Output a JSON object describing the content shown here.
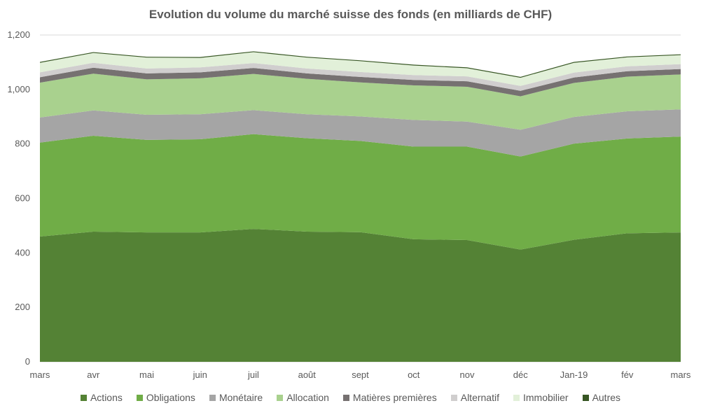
{
  "chart_data": {
    "type": "area",
    "stacked": true,
    "title": "Evolution du volume du marché suisse des fonds (en milliards de CHF)",
    "xlabel": "",
    "ylabel": "",
    "categories": [
      "mars",
      "avr",
      "mai",
      "juin",
      "juil",
      "août",
      "sept",
      "oct",
      "nov",
      "déc",
      "Jan-19",
      "fév",
      "mars"
    ],
    "ylim": [
      0,
      1200
    ],
    "yticks": [
      0,
      200,
      400,
      600,
      800,
      1000,
      1200
    ],
    "ytick_labels": [
      "0",
      "200",
      "400",
      "600",
      "800",
      "1,000",
      "1,200"
    ],
    "grid": true,
    "legend_position": "bottom",
    "series": [
      {
        "name": "Actions",
        "color": "#548235",
        "values": [
          460,
          478,
          475,
          475,
          488,
          478,
          476,
          450,
          447,
          412,
          448,
          472,
          475
        ]
      },
      {
        "name": "Obligations",
        "color": "#70AD47",
        "values": [
          345,
          352,
          340,
          342,
          348,
          343,
          335,
          340,
          343,
          342,
          353,
          348,
          352
        ]
      },
      {
        "name": "Monétaire",
        "color": "#A5A5A5",
        "values": [
          92,
          93,
          92,
          92,
          88,
          88,
          90,
          98,
          92,
          98,
          98,
          100,
          100
        ]
      },
      {
        "name": "Allocation",
        "color": "#A9D18E",
        "values": [
          128,
          135,
          130,
          132,
          133,
          130,
          125,
          127,
          128,
          123,
          125,
          127,
          128
        ]
      },
      {
        "name": "Matières premières",
        "color": "#767171",
        "values": [
          20,
          22,
          22,
          22,
          22,
          20,
          20,
          20,
          20,
          20,
          20,
          20,
          20
        ]
      },
      {
        "name": "Alternatif",
        "color": "#D0CECE",
        "values": [
          18,
          18,
          18,
          18,
          18,
          18,
          18,
          18,
          18,
          18,
          18,
          18,
          18
        ]
      },
      {
        "name": "Immobilier",
        "color": "#E2F0D9",
        "values": [
          35,
          36,
          40,
          35,
          40,
          40,
          40,
          35,
          30,
          30,
          36,
          33,
          33
        ]
      },
      {
        "name": "Autres",
        "color": "#375623",
        "values": [
          3,
          3,
          3,
          3,
          3,
          3,
          3,
          3,
          3,
          3,
          3,
          3,
          3
        ]
      }
    ]
  }
}
